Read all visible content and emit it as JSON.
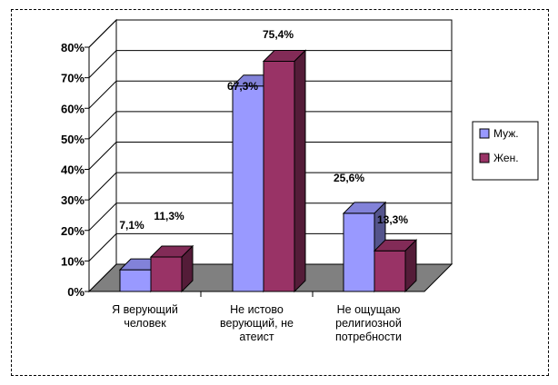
{
  "chart_data": {
    "type": "bar",
    "title": "",
    "xlabel": "",
    "ylabel": "",
    "ylim": [
      0,
      80
    ],
    "yticks": [
      0,
      10,
      20,
      30,
      40,
      50,
      60,
      70,
      80
    ],
    "ytick_suffix": "%",
    "grid": true,
    "three_d": true,
    "legend_position": "right",
    "categories": [
      [
        "Я верующий",
        "человек"
      ],
      [
        "Не истово",
        "верующий,  не",
        "атеист"
      ],
      [
        "Не ощущаю",
        "религиозной",
        "потребности"
      ]
    ],
    "series": [
      {
        "name": "Муж.",
        "color": "#9999ff",
        "values": [
          7.1,
          67.3,
          25.6
        ],
        "labels": [
          "7,1%",
          "67,3%",
          "25,6%"
        ]
      },
      {
        "name": "Жен.",
        "color": "#993366",
        "values": [
          11.3,
          75.4,
          13.3
        ],
        "labels": [
          "11,3%",
          "75,4%",
          "13,3%"
        ]
      }
    ]
  }
}
